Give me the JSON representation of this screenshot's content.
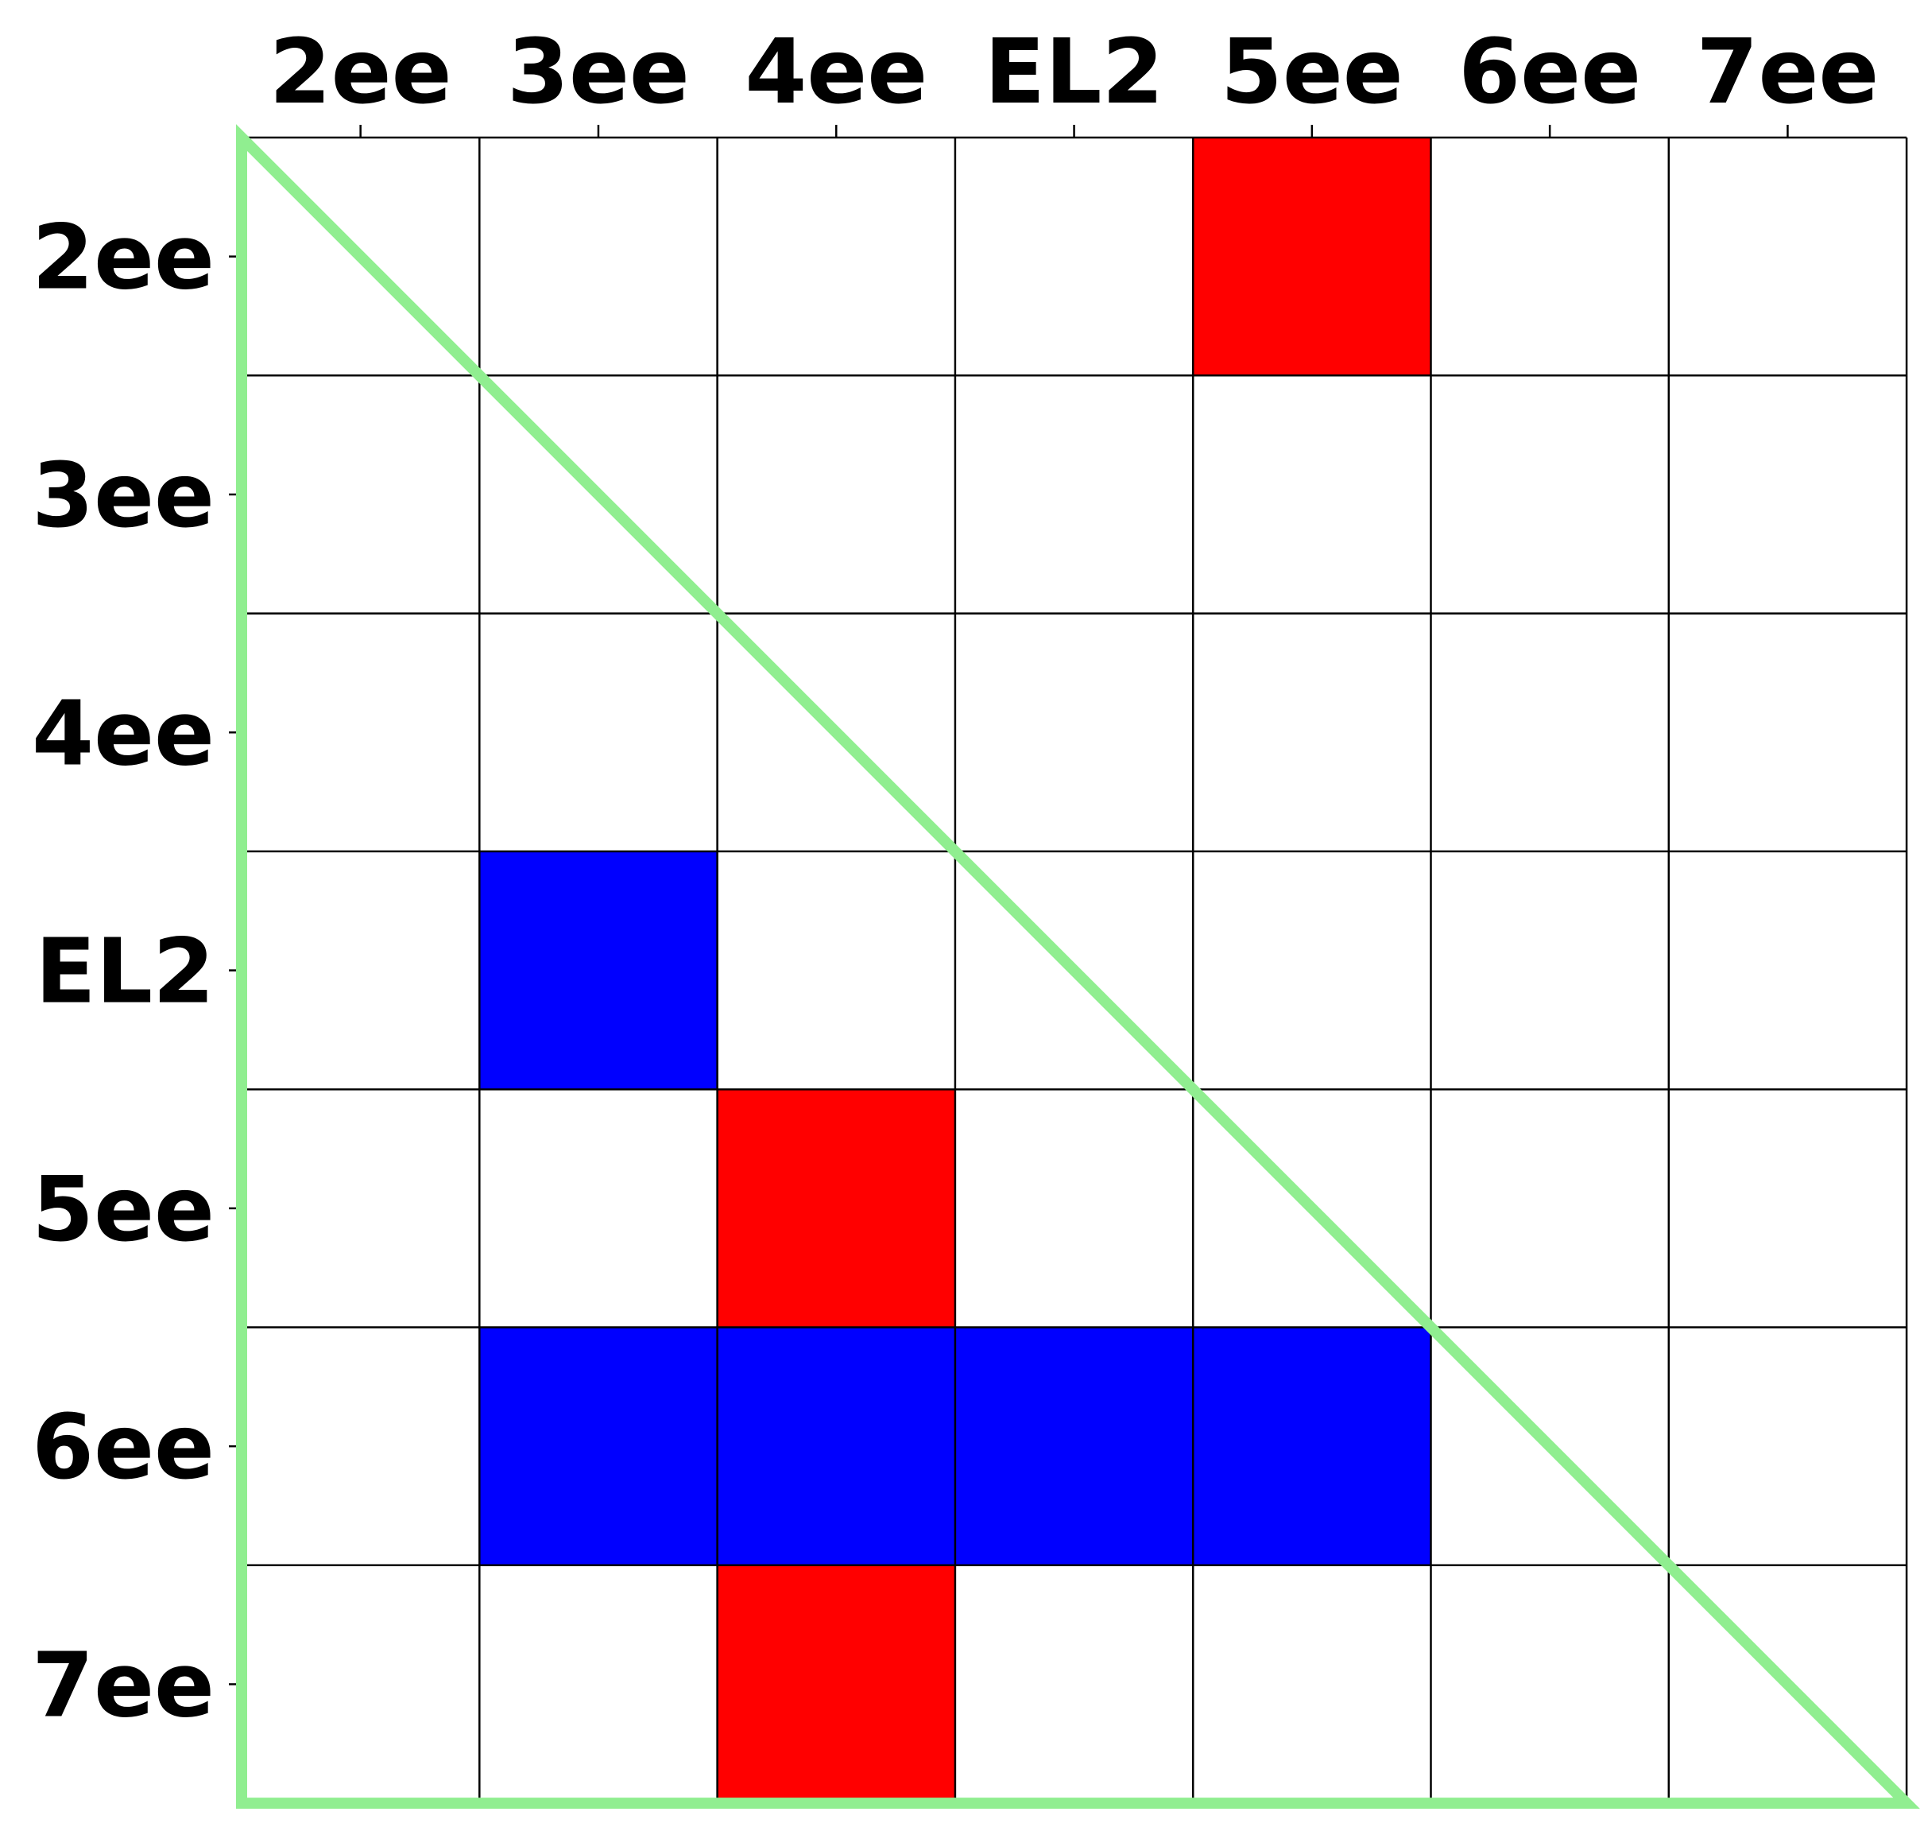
{
  "chart_data": {
    "type": "heatmap",
    "x_tick_labels": [
      "2ee",
      "3ee",
      "4ee",
      "EL2",
      "5ee",
      "6ee",
      "7ee"
    ],
    "y_tick_labels": [
      "2ee",
      "3ee",
      "4ee",
      "EL2",
      "5ee",
      "6ee",
      "7ee"
    ],
    "x_axis_position": "top",
    "grid": true,
    "colors": {
      "positive": "#ff0000",
      "negative": "#0000ff",
      "empty": "#ffffff",
      "gridline": "#000000",
      "triangle_outline": "#90ee90"
    },
    "cells": [
      {
        "row": "2ee",
        "col": "5ee",
        "sign": "positive"
      },
      {
        "row": "EL2",
        "col": "3ee",
        "sign": "negative"
      },
      {
        "row": "5ee",
        "col": "4ee",
        "sign": "positive"
      },
      {
        "row": "6ee",
        "col": "3ee",
        "sign": "negative"
      },
      {
        "row": "6ee",
        "col": "4ee",
        "sign": "negative"
      },
      {
        "row": "6ee",
        "col": "EL2",
        "sign": "negative"
      },
      {
        "row": "6ee",
        "col": "5ee",
        "sign": "negative"
      },
      {
        "row": "7ee",
        "col": "4ee",
        "sign": "positive"
      }
    ],
    "triangle_outline": "lower-left"
  }
}
